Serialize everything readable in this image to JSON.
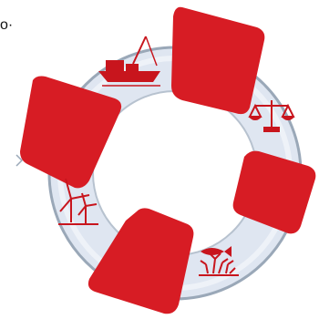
{
  "corner_text": "o·",
  "colors": {
    "band_red": "#d71c24",
    "ring_fill": "#dfe6f1",
    "ring_stroke": "#9aa8b8",
    "icon_red": "#c8151d"
  },
  "segments": [
    {
      "name": "ring-band-top",
      "icon": "none"
    },
    {
      "name": "ring-band-right",
      "icon": "none"
    },
    {
      "name": "ring-band-bottom",
      "icon": "none"
    },
    {
      "name": "ring-band-left",
      "icon": "none"
    }
  ],
  "icons": [
    {
      "name": "fishing-boat-icon"
    },
    {
      "name": "scales-of-justice-icon"
    },
    {
      "name": "fish-coral-icon"
    },
    {
      "name": "wind-turbines-icon"
    }
  ]
}
